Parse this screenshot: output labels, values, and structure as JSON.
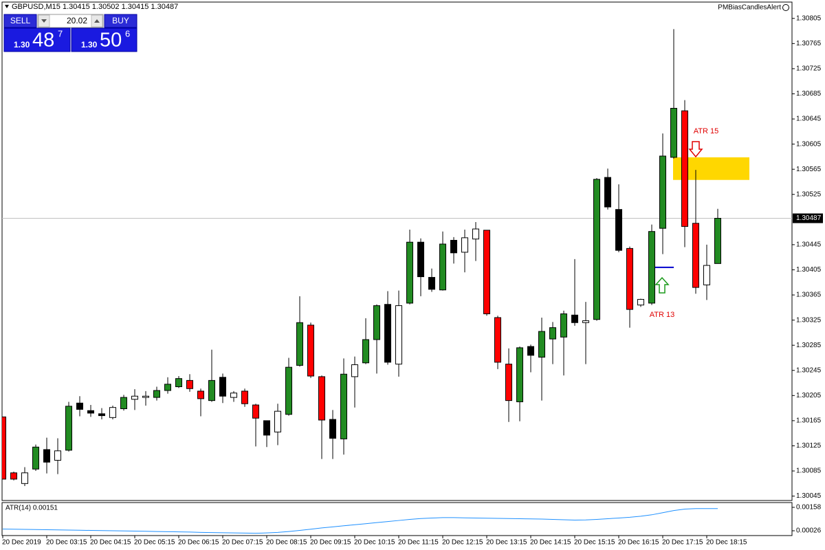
{
  "chart_data": [
    {
      "type": "candlestick",
      "title": "GBPUSD,M15  1.30415 1.30502 1.30415 1.30487",
      "indicator": "PMBiasCandlesAlert",
      "categories": [
        "20 Dec 2019",
        null,
        null,
        null,
        "20 Dec 03:15",
        null,
        null,
        null,
        "20 Dec 04:15",
        null,
        null,
        null,
        "20 Dec 05:15",
        null,
        null,
        null,
        "20 Dec 06:15",
        null,
        null,
        null,
        "20 Dec 07:15",
        null,
        null,
        null,
        "20 Dec 08:15",
        null,
        null,
        null,
        "20 Dec 09:15",
        null,
        null,
        null,
        "20 Dec 10:15",
        null,
        null,
        null,
        "20 Dec 11:15",
        null,
        null,
        null,
        "20 Dec 12:15",
        null,
        null,
        null,
        "20 Dec 13:15",
        null,
        null,
        null,
        "20 Dec 14:15",
        null,
        null,
        null,
        "20 Dec 15:15",
        null,
        null,
        null,
        "20 Dec 16:15",
        null,
        null,
        null,
        "20 Dec 17:15",
        null,
        null,
        null,
        "20 Dec 18:15",
        null
      ],
      "open": [
        1.30171,
        1.30082,
        1.30065,
        1.30088,
        1.30119,
        1.30102,
        1.30118,
        1.30193,
        1.30181,
        1.30176,
        1.3017,
        1.30184,
        1.30199,
        1.30202,
        1.30202,
        1.30213,
        1.30219,
        1.30229,
        1.30212,
        1.30197,
        1.30234,
        1.30202,
        1.30212,
        1.3019,
        1.30165,
        1.30147,
        1.30175,
        1.30253,
        1.30317,
        1.30235,
        1.30167,
        1.30136,
        1.30235,
        1.30257,
        1.30294,
        1.3035,
        1.30255,
        1.30352,
        1.30449,
        1.30393,
        1.30373,
        1.30452,
        1.30433,
        1.30454,
        1.30468,
        1.30329,
        1.30255,
        1.30195,
        1.30283,
        1.30266,
        1.30295,
        1.30298,
        1.30333,
        1.30321,
        1.30326,
        1.30552,
        1.30501,
        1.30439,
        1.30349,
        1.30352,
        1.30471,
        1.30584,
        1.30658,
        1.30479,
        1.30381,
        1.30415
      ],
      "high": [
        1.30171,
        1.30084,
        1.30091,
        1.30127,
        1.30138,
        1.30137,
        1.30195,
        1.30204,
        1.3019,
        1.30185,
        1.30189,
        1.30206,
        1.30215,
        1.30212,
        1.30219,
        1.30234,
        1.30236,
        1.30239,
        1.30216,
        1.30278,
        1.3024,
        1.30212,
        1.30216,
        1.30192,
        1.30165,
        1.30192,
        1.30265,
        1.30363,
        1.30321,
        1.30237,
        1.30182,
        1.30264,
        1.30267,
        1.30328,
        1.3035,
        1.30371,
        1.30372,
        1.30469,
        1.30455,
        1.30407,
        1.30466,
        1.30457,
        1.30469,
        1.30481,
        1.30468,
        1.30332,
        1.3028,
        1.30283,
        1.30286,
        1.30329,
        1.30322,
        1.3034,
        1.30422,
        1.30354,
        1.30551,
        1.30566,
        1.30541,
        1.30442,
        1.30359,
        1.30477,
        1.30622,
        1.30788,
        1.30675,
        1.30564,
        1.30445,
        1.30502
      ],
      "low": [
        1.30072,
        1.3007,
        1.30061,
        1.30085,
        1.30081,
        1.3008,
        1.30116,
        1.30172,
        1.30171,
        1.30167,
        1.30167,
        1.30181,
        1.30182,
        1.30189,
        1.30197,
        1.30208,
        1.30217,
        1.30211,
        1.30172,
        1.30195,
        1.30193,
        1.30195,
        1.30187,
        1.30124,
        1.30123,
        1.30126,
        1.30173,
        1.30251,
        1.30233,
        1.30104,
        1.30104,
        1.30111,
        1.30186,
        1.30255,
        1.3024,
        1.30254,
        1.30235,
        1.3035,
        1.30363,
        1.3037,
        1.30372,
        1.30415,
        1.30401,
        1.30419,
        1.30332,
        1.30247,
        1.30163,
        1.30164,
        1.30242,
        1.30197,
        1.30255,
        1.30237,
        1.30316,
        1.30255,
        1.30324,
        1.30501,
        1.30433,
        1.30313,
        1.30346,
        1.30349,
        1.3043,
        1.30582,
        1.30441,
        1.30367,
        1.30357,
        1.30415
      ],
      "close": [
        1.30072,
        1.30072,
        1.30082,
        1.30123,
        1.30099,
        1.30117,
        1.30188,
        1.30183,
        1.30177,
        1.30173,
        1.30186,
        1.30202,
        1.30204,
        1.30204,
        1.30213,
        1.30223,
        1.30232,
        1.30216,
        1.302,
        1.30229,
        1.30204,
        1.30209,
        1.30192,
        1.30169,
        1.30142,
        1.3018,
        1.3025,
        1.30321,
        1.30236,
        1.30166,
        1.30137,
        1.30239,
        1.30254,
        1.30294,
        1.30348,
        1.30258,
        1.30348,
        1.30449,
        1.30394,
        1.30374,
        1.30446,
        1.30432,
        1.30456,
        1.3047,
        1.30335,
        1.30258,
        1.30197,
        1.30281,
        1.30269,
        1.30307,
        1.30313,
        1.30335,
        1.30321,
        1.30324,
        1.30549,
        1.30505,
        1.30436,
        1.30342,
        1.30358,
        1.30466,
        1.30586,
        1.30662,
        1.30474,
        1.30377,
        1.30412,
        1.30487
      ],
      "colors": [
        "#ff0000",
        "#ff0000",
        "#ffffff",
        "#228b22",
        "#000000",
        "#ffffff",
        "#228b22",
        "#000000",
        "#000000",
        "#000000",
        "#ffffff",
        "#228b22",
        "#ffffff",
        "#ffffff",
        "#228b22",
        "#228b22",
        "#228b22",
        "#ff0000",
        "#ff0000",
        "#228b22",
        "#000000",
        "#ffffff",
        "#ff0000",
        "#ff0000",
        "#000000",
        "#ffffff",
        "#228b22",
        "#228b22",
        "#ff0000",
        "#ff0000",
        "#000000",
        "#228b22",
        "#ffffff",
        "#228b22",
        "#228b22",
        "#000000",
        "#ffffff",
        "#228b22",
        "#000000",
        "#000000",
        "#228b22",
        "#000000",
        "#ffffff",
        "#ffffff",
        "#ff0000",
        "#ff0000",
        "#ff0000",
        "#228b22",
        "#000000",
        "#228b22",
        "#228b22",
        "#228b22",
        "#000000",
        "#ffffff",
        "#228b22",
        "#000000",
        "#000000",
        "#ff0000",
        "#ffffff",
        "#228b22",
        "#228b22",
        "#228b22",
        "#ff0000",
        "#ff0000",
        "#ffffff",
        "#228b22"
      ],
      "ylim": [
        1.30038,
        1.30831
      ],
      "yticks": [
        1.30805,
        1.30765,
        1.30725,
        1.30685,
        1.30645,
        1.30605,
        1.30565,
        1.30525,
        1.30445,
        1.30405,
        1.30365,
        1.30325,
        1.30285,
        1.30245,
        1.30205,
        1.30165,
        1.30125,
        1.30085,
        1.30045
      ],
      "current_price": 1.30487,
      "zone": [
        1.30548,
        1.30584
      ],
      "zone_color": "#ffd700",
      "level": 1.30409,
      "level_color": "#0000cd",
      "annotations": [
        "ATR 15",
        "ATR 13"
      ]
    },
    {
      "type": "line",
      "title": "ATR(14) 0.00151",
      "color": "#1e90ff",
      "values": [
        0.00036,
        0.00035,
        0.00034,
        0.00033,
        0.00032,
        0.00031,
        0.0003,
        0.00029,
        0.00028,
        0.00027,
        0.00026,
        0.00025,
        0.00024,
        0.00023,
        0.00022,
        0.00021,
        0.0002,
        0.00019,
        0.00017,
        0.00016,
        0.00015,
        0.00014,
        0.00013,
        0.00012,
        0.00014,
        0.00017,
        0.00022,
        0.00028,
        0.00035,
        0.00042,
        0.00048,
        0.00054,
        0.0006,
        0.00066,
        0.00072,
        0.00078,
        0.00084,
        0.0009,
        0.00095,
        0.00098,
        0.001,
        0.001,
        0.00099,
        0.00098,
        0.00097,
        0.00096,
        0.00095,
        0.00094,
        0.00093,
        0.00092,
        0.0009,
        0.00088,
        0.00086,
        0.00087,
        0.0009,
        0.00094,
        0.00098,
        0.00102,
        0.00108,
        0.00116,
        0.00128,
        0.0014,
        0.00148,
        0.00151,
        0.00151,
        0.00151
      ],
      "ylim": [
        -1e-05,
        0.00185
      ],
      "yticks": [
        0.00158,
        0.00026
      ]
    }
  ],
  "trade_panel": {
    "sell": "SELL",
    "buy": "BUY",
    "lots": "20.02",
    "bid_prefix": "1.30",
    "bid_big": "48",
    "bid_pip": "7",
    "ask_prefix": "1.30",
    "ask_big": "50",
    "ask_pip": "6"
  }
}
